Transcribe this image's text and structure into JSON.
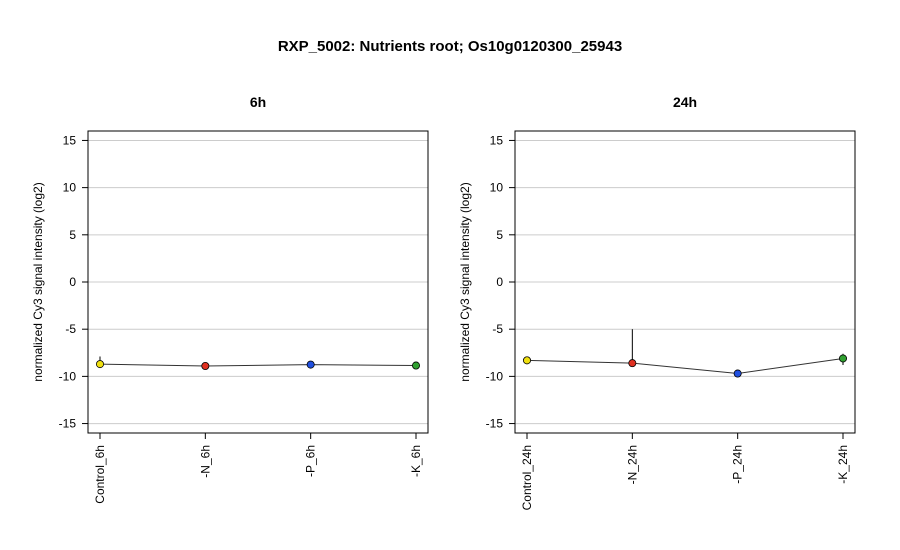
{
  "title": "RXP_5002: Nutrients root; Os10g0120300_25943",
  "chart_data": [
    {
      "type": "line",
      "title": "6h",
      "xlabel": "",
      "ylabel": "normalized Cy3 signal intensity (log2)",
      "ylim": [
        -16,
        16
      ],
      "yticks": [
        -15,
        -10,
        -5,
        0,
        5,
        10,
        15
      ],
      "grid": true,
      "legend": "none",
      "categories": [
        "Control_6h",
        "-N_6h",
        "-P_6h",
        "-K_6h"
      ],
      "values": [
        -8.7,
        -8.9,
        -8.75,
        -8.85
      ],
      "error_upper": [
        -7.9,
        -8.6,
        -8.5,
        -8.6
      ],
      "error_lower": [
        -9.1,
        -9.2,
        -9.0,
        -9.1
      ],
      "colors": [
        "#f0e010",
        "#e03020",
        "#2050e0",
        "#30a030"
      ]
    },
    {
      "type": "line",
      "title": "24h",
      "xlabel": "",
      "ylabel": "normalized Cy3 signal intensity (log2)",
      "ylim": [
        -16,
        16
      ],
      "yticks": [
        -15,
        -10,
        -5,
        0,
        5,
        10,
        15
      ],
      "grid": true,
      "legend": "none",
      "categories": [
        "Control_24h",
        "-N_24h",
        "-P_24h",
        "-K_24h"
      ],
      "values": [
        -8.3,
        -8.6,
        -9.7,
        -8.1
      ],
      "error_upper": [
        -8.1,
        -5.0,
        -9.5,
        -7.6
      ],
      "error_lower": [
        -8.5,
        -8.8,
        -9.9,
        -8.8
      ],
      "colors": [
        "#f0e010",
        "#e03020",
        "#2050e0",
        "#30a030"
      ]
    }
  ]
}
